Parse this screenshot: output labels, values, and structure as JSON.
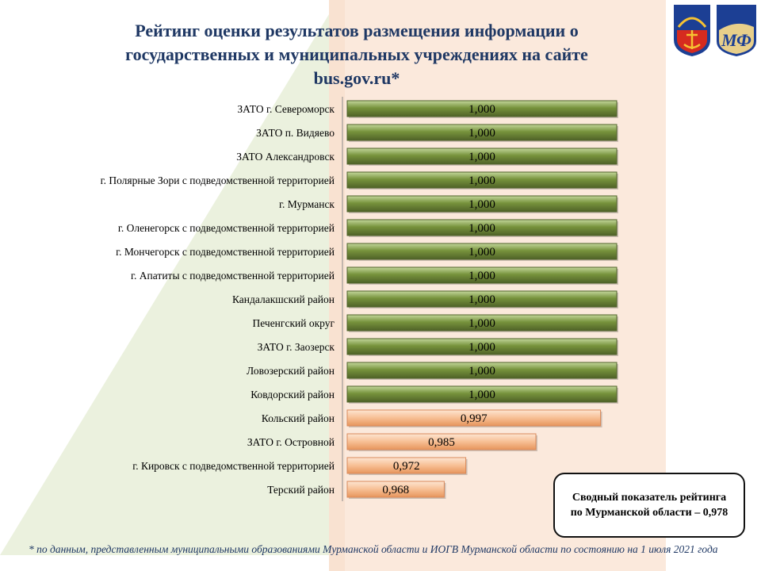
{
  "title": "Рейтинг оценки результатов размещения  информации о государственных и муниципальных учреждениях на сайте bus.gov.ru*",
  "summary_box": "Сводный показатель рейтинга по Мурманской области – 0,978",
  "footnote": "* по данным, представленным  муниципальными образованиями Мурманской области и ИОГВ Мурманской области по состоянию на 1 июля 2021 года",
  "logos": {
    "left_logo": "regional-coat-of-arms-icon",
    "right_logo": "ministry-of-finance-emblem-icon",
    "right_logo_text": "МФ"
  },
  "colors": {
    "title": "#1f3864",
    "bar_full": "#77933c",
    "bar_partial": "#f6b98e",
    "background_band": "#fbe9dc",
    "background_stripe": "#ebf1de"
  },
  "chart_data": {
    "type": "bar",
    "orientation": "horizontal",
    "categories": [
      "ЗАТО г. Североморск",
      "ЗАТО п. Видяево",
      "ЗАТО Александровск",
      "г. Полярные Зори  с подведомственной территорией",
      "г. Мурманск",
      "г. Оленегорск  с подведомственной территорией",
      "г. Мончегорск  с подведомственной территорией",
      "г. Апатиты  с подведомственной территорией",
      "Кандалакшский район",
      "Печенгский округ",
      "ЗАТО г. Заозерск",
      "Ловозерский район",
      "Ковдорский район",
      "Кольский район",
      "ЗАТО г. Островной",
      "г. Кировск с подведомственной территорией",
      "Терский район"
    ],
    "values": [
      1.0,
      1.0,
      1.0,
      1.0,
      1.0,
      1.0,
      1.0,
      1.0,
      1.0,
      1.0,
      1.0,
      1.0,
      1.0,
      0.997,
      0.985,
      0.972,
      0.968
    ],
    "value_labels": [
      "1,000",
      "1,000",
      "1,000",
      "1,000",
      "1,000",
      "1,000",
      "1,000",
      "1,000",
      "1,000",
      "1,000",
      "1,000",
      "1,000",
      "1,000",
      "0,997",
      "0,985",
      "0,972",
      "0,968"
    ],
    "xlim": [
      0.95,
      1.0
    ],
    "grid": false,
    "legend": "none"
  }
}
